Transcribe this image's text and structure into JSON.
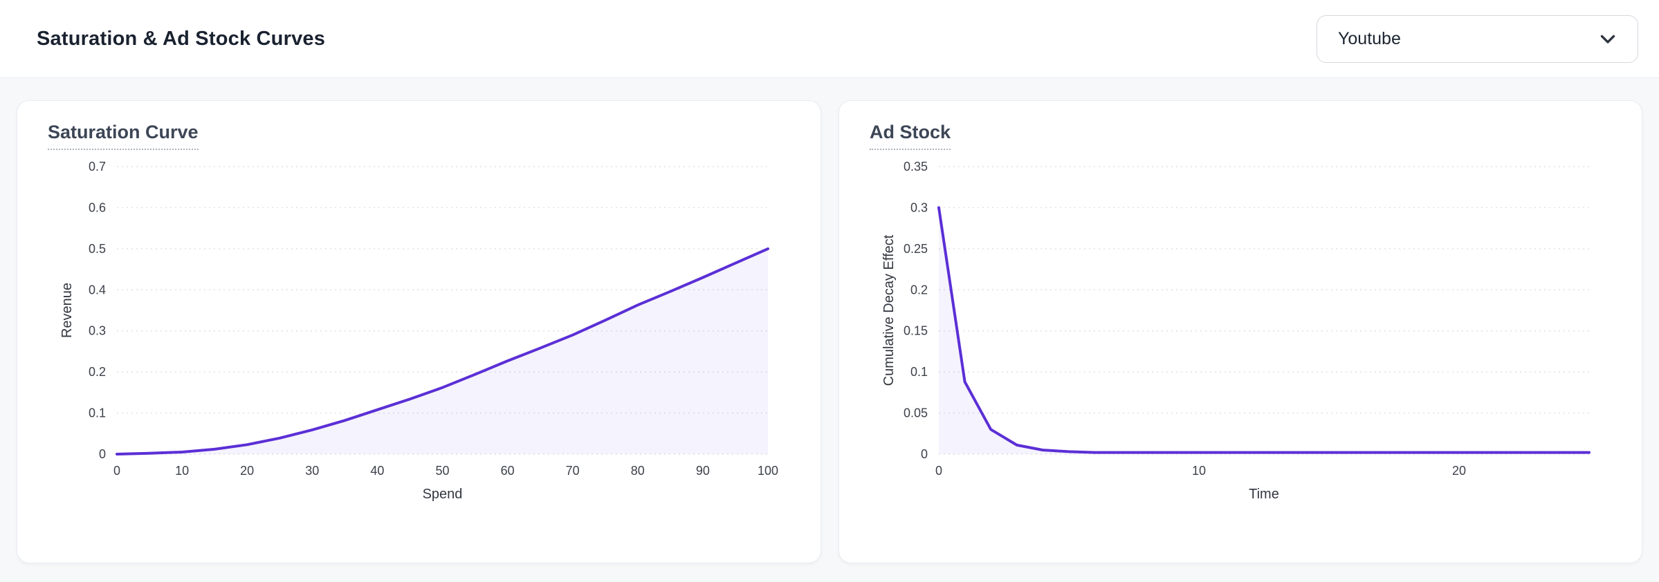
{
  "header": {
    "title": "Saturation & Ad Stock Curves",
    "channel_dropdown": {
      "value": "Youtube"
    }
  },
  "colors": {
    "accent": "#5b2fd6",
    "grid": "#e1e2e8",
    "card_background": "#ffffff",
    "page_background": "#f7f8fa"
  },
  "chart_data": [
    {
      "type": "line",
      "title": "Saturation Curve",
      "xlabel": "Spend",
      "ylabel": "Revenue",
      "xlim": [
        0,
        100
      ],
      "ylim": [
        0,
        0.7
      ],
      "xticks": [
        0,
        10,
        20,
        30,
        40,
        50,
        60,
        70,
        80,
        90,
        100
      ],
      "yticks": [
        0,
        0.1,
        0.2,
        0.3,
        0.4,
        0.5,
        0.6,
        0.7
      ],
      "x": [
        0,
        5,
        10,
        15,
        20,
        25,
        30,
        35,
        40,
        45,
        50,
        55,
        60,
        65,
        70,
        75,
        80,
        85,
        90,
        95,
        100
      ],
      "y": [
        0,
        0.002,
        0.005,
        0.012,
        0.023,
        0.039,
        0.059,
        0.082,
        0.108,
        0.134,
        0.162,
        0.194,
        0.227,
        0.258,
        0.29,
        0.326,
        0.363,
        0.396,
        0.43,
        0.465,
        0.5
      ],
      "line_color": "#5b2fd6",
      "fill_opacity": 0.06,
      "grid": true,
      "legend": false
    },
    {
      "type": "line",
      "title": "Ad Stock",
      "xlabel": "Time",
      "ylabel": "Cumulative Decay Effect",
      "xlim": [
        0,
        25
      ],
      "ylim": [
        0,
        0.35
      ],
      "xticks": [
        0,
        10,
        20
      ],
      "yticks": [
        0,
        0.05,
        0.1,
        0.15,
        0.2,
        0.25,
        0.3,
        0.35
      ],
      "x": [
        0,
        1,
        2,
        3,
        4,
        5,
        6,
        7,
        8,
        9,
        10,
        11,
        12,
        13,
        14,
        15,
        16,
        17,
        18,
        19,
        20,
        21,
        22,
        23,
        24,
        25
      ],
      "y": [
        0.3,
        0.088,
        0.03,
        0.011,
        0.005,
        0.003,
        0.002,
        0.002,
        0.002,
        0.002,
        0.002,
        0.002,
        0.002,
        0.002,
        0.002,
        0.002,
        0.002,
        0.002,
        0.002,
        0.002,
        0.002,
        0.002,
        0.002,
        0.002,
        0.002,
        0.002
      ],
      "line_color": "#5b2fd6",
      "fill_opacity": 0.06,
      "grid": true,
      "legend": false
    }
  ]
}
